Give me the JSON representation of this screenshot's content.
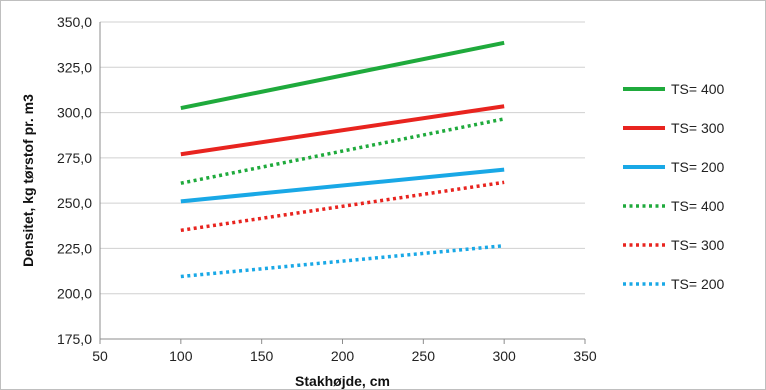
{
  "chart_data": {
    "type": "line",
    "title": "",
    "xlabel": "Stakhøjde, cm",
    "ylabel": "Densitet, kg tørstof pr. m3",
    "xlim": [
      50,
      350
    ],
    "ylim": [
      175,
      350
    ],
    "x_ticks": [
      50,
      100,
      150,
      200,
      250,
      300,
      350
    ],
    "y_ticks": [
      "175,0",
      "200,0",
      "225,0",
      "250,0",
      "275,0",
      "300,0",
      "325,0",
      "350,0"
    ],
    "y_tick_values": [
      175,
      200,
      225,
      250,
      275,
      300,
      325,
      350
    ],
    "grid": "horizontal",
    "legend_position": "right",
    "series": [
      {
        "name": "TS= 400",
        "color": "#1faa3c",
        "style": "solid",
        "x": [
          100,
          300
        ],
        "y": [
          302.5,
          338.5
        ]
      },
      {
        "name": "TS= 300",
        "color": "#e8241f",
        "style": "solid",
        "x": [
          100,
          300
        ],
        "y": [
          277,
          303.5
        ]
      },
      {
        "name": "TS= 200",
        "color": "#19a8e6",
        "style": "solid",
        "x": [
          100,
          300
        ],
        "y": [
          251,
          268.5
        ]
      },
      {
        "name": "TS= 400",
        "color": "#1faa3c",
        "style": "dotted",
        "x": [
          100,
          300
        ],
        "y": [
          261,
          296.5
        ]
      },
      {
        "name": "TS= 300",
        "color": "#e8241f",
        "style": "dotted",
        "x": [
          100,
          300
        ],
        "y": [
          235,
          261.5
        ]
      },
      {
        "name": "TS= 200",
        "color": "#19a8e6",
        "style": "dotted",
        "x": [
          100,
          300
        ],
        "y": [
          209.5,
          226.5
        ]
      }
    ]
  }
}
